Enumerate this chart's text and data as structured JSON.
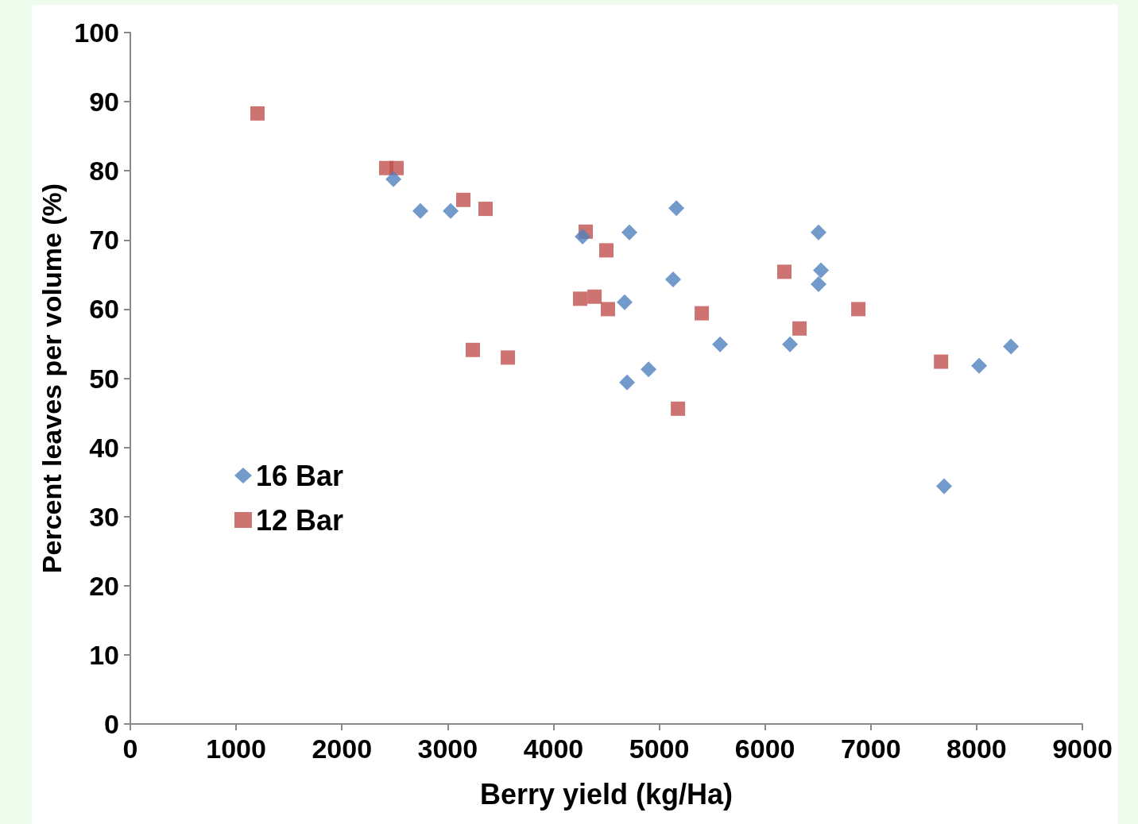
{
  "chart_data": {
    "type": "scatter",
    "xlabel": "Berry yield (kg/Ha)",
    "ylabel": "Percent leaves per volume (%)",
    "xlim": [
      0,
      9000
    ],
    "xticks": [
      0,
      1000,
      2000,
      3000,
      4000,
      5000,
      6000,
      7000,
      8000,
      9000
    ],
    "ylim": [
      0,
      100
    ],
    "yticks": [
      0,
      10,
      20,
      30,
      40,
      50,
      60,
      70,
      80,
      90,
      100
    ],
    "grid": false,
    "legend": "left",
    "series": [
      {
        "name": "16 Bar",
        "color": "#4f81bd",
        "marker": "diamond",
        "x": [
          2487,
          2742,
          3028,
          4275,
          4718,
          5162,
          5131,
          4673,
          4696,
          4899,
          5575,
          6236,
          6506,
          6529,
          6506,
          7693,
          8024,
          8325
        ],
        "values": [
          78.8,
          74.2,
          74.2,
          70.5,
          71.1,
          74.6,
          64.3,
          61.0,
          49.4,
          51.3,
          54.9,
          54.9,
          71.1,
          65.6,
          63.6,
          34.4,
          51.8,
          54.6
        ]
      },
      {
        "name": "12 Bar",
        "color": "#c0504d",
        "marker": "square",
        "x": [
          1202,
          2419,
          2517,
          3148,
          3358,
          4305,
          4500,
          4252,
          4388,
          4515,
          3238,
          3569,
          5402,
          5177,
          6183,
          6326,
          6882,
          7664
        ],
        "values": [
          88.3,
          80.4,
          80.4,
          75.8,
          74.5,
          71.2,
          68.5,
          61.5,
          61.8,
          60.0,
          54.1,
          53.0,
          59.4,
          45.6,
          65.4,
          57.2,
          60.0,
          52.4
        ]
      }
    ]
  }
}
